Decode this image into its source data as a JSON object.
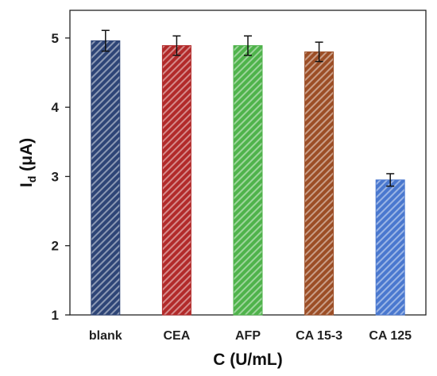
{
  "chart_data": {
    "type": "bar",
    "categories": [
      "blank",
      "CEA",
      "AFP",
      "CA 15-3",
      "CA 125"
    ],
    "values": [
      4.96,
      4.89,
      4.89,
      4.8,
      2.95
    ],
    "errors": [
      0.15,
      0.14,
      0.14,
      0.14,
      0.09
    ],
    "colors": [
      "#2e4577",
      "#b22a2a",
      "#4fb34b",
      "#9c4e26",
      "#4a78cf"
    ],
    "hatch": "diagonal",
    "xlabel": "C (U/mL)",
    "ylabel_main": "I",
    "ylabel_sub": "d",
    "ylabel_rest": " (μA)",
    "ylim": [
      1,
      5.4
    ],
    "yticks": [
      "1",
      "2",
      "3",
      "4",
      "5"
    ],
    "grid": false,
    "legend": "none"
  }
}
